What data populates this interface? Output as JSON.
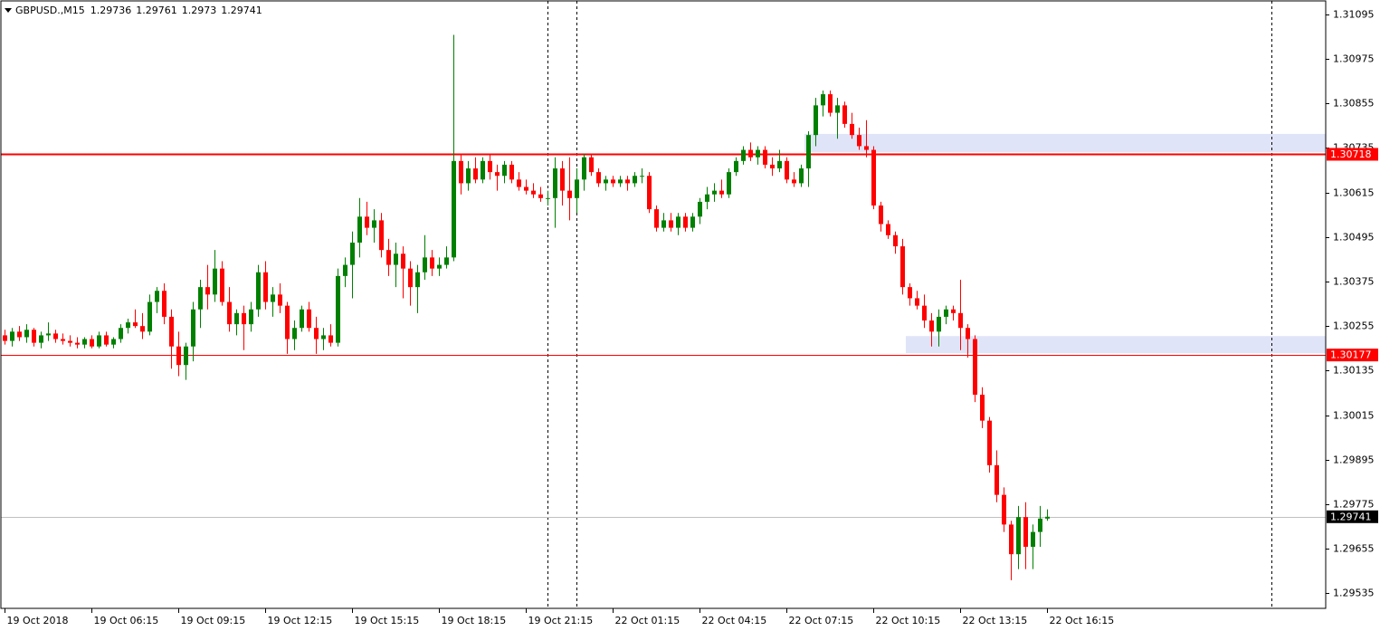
{
  "chart_data": {
    "type": "candlestick",
    "title": "GBPUSD.,M15",
    "up_color": "#008000",
    "down_color": "#ff0000",
    "ylim": [
      1.29494,
      1.31134
    ],
    "yticks": [
      1.31095,
      1.30975,
      1.30855,
      1.30735,
      1.30615,
      1.30495,
      1.30375,
      1.30255,
      1.30135,
      1.30015,
      1.29895,
      1.29775,
      1.29655,
      1.29535
    ],
    "xlim": [
      -0.5,
      182.5
    ],
    "categories": [
      "19 Oct 2018",
      null,
      null,
      null,
      null,
      null,
      null,
      null,
      null,
      null,
      null,
      null,
      "19 Oct 06:15",
      null,
      null,
      null,
      null,
      null,
      null,
      null,
      null,
      null,
      null,
      null,
      "19 Oct 09:15",
      null,
      null,
      null,
      null,
      null,
      null,
      null,
      null,
      null,
      null,
      null,
      "19 Oct 12:15",
      null,
      null,
      null,
      null,
      null,
      null,
      null,
      null,
      null,
      null,
      null,
      "19 Oct 15:15",
      null,
      null,
      null,
      null,
      null,
      null,
      null,
      null,
      null,
      null,
      null,
      "19 Oct 18:15",
      null,
      null,
      null,
      null,
      null,
      null,
      null,
      null,
      null,
      null,
      null,
      "19 Oct 21:15",
      null,
      null,
      null,
      null,
      null,
      null,
      null,
      null,
      null,
      null,
      null,
      "22 Oct 01:15",
      null,
      null,
      null,
      null,
      null,
      null,
      null,
      null,
      null,
      null,
      null,
      "22 Oct 04:15",
      null,
      null,
      null,
      null,
      null,
      null,
      null,
      null,
      null,
      null,
      null,
      "22 Oct 07:15",
      null,
      null,
      null,
      null,
      null,
      null,
      null,
      null,
      null,
      null,
      null,
      "22 Oct 10:15",
      null,
      null,
      null,
      null,
      null,
      null,
      null,
      null,
      null,
      null,
      null,
      "22 Oct 13:15",
      null,
      null,
      null,
      null,
      null,
      null,
      null,
      null,
      null,
      null,
      null,
      "22 Oct 16:15"
    ],
    "candles": [
      [
        1.3023,
        1.30245,
        1.30205,
        1.30215
      ],
      [
        1.30215,
        1.3025,
        1.302,
        1.3024
      ],
      [
        1.3024,
        1.30255,
        1.30215,
        1.30225
      ],
      [
        1.30225,
        1.3026,
        1.3021,
        1.30245
      ],
      [
        1.30245,
        1.3025,
        1.302,
        1.3021
      ],
      [
        1.3021,
        1.3024,
        1.30195,
        1.3023
      ],
      [
        1.3023,
        1.30265,
        1.30215,
        1.30235
      ],
      [
        1.30235,
        1.30245,
        1.3021,
        1.3022
      ],
      [
        1.3022,
        1.30235,
        1.30205,
        1.30215
      ],
      [
        1.30215,
        1.3023,
        1.302,
        1.3021
      ],
      [
        1.3021,
        1.30225,
        1.30195,
        1.30205
      ],
      [
        1.30205,
        1.30225,
        1.30195,
        1.3022
      ],
      [
        1.3022,
        1.3023,
        1.30195,
        1.302
      ],
      [
        1.302,
        1.3024,
        1.30195,
        1.3023
      ],
      [
        1.3023,
        1.3024,
        1.302,
        1.30205
      ],
      [
        1.30205,
        1.30225,
        1.30195,
        1.3022
      ],
      [
        1.3022,
        1.3026,
        1.3021,
        1.3025
      ],
      [
        1.3025,
        1.30275,
        1.30235,
        1.30265
      ],
      [
        1.30265,
        1.303,
        1.3025,
        1.30255
      ],
      [
        1.30255,
        1.3029,
        1.3022,
        1.3024
      ],
      [
        1.3024,
        1.3034,
        1.3023,
        1.3032
      ],
      [
        1.3032,
        1.3036,
        1.3029,
        1.3035
      ],
      [
        1.3035,
        1.3037,
        1.3026,
        1.3028
      ],
      [
        1.3028,
        1.303,
        1.3014,
        1.302
      ],
      [
        1.302,
        1.3024,
        1.3012,
        1.3015
      ],
      [
        1.3015,
        1.3021,
        1.3011,
        1.302
      ],
      [
        1.302,
        1.3032,
        1.3016,
        1.303
      ],
      [
        1.303,
        1.3038,
        1.3025,
        1.3036
      ],
      [
        1.3036,
        1.3042,
        1.303,
        1.3034
      ],
      [
        1.3034,
        1.3046,
        1.3032,
        1.3041
      ],
      [
        1.3041,
        1.3043,
        1.3031,
        1.3032
      ],
      [
        1.3032,
        1.3036,
        1.3024,
        1.3026
      ],
      [
        1.3026,
        1.303,
        1.3023,
        1.3029
      ],
      [
        1.3029,
        1.3031,
        1.3019,
        1.3026
      ],
      [
        1.3026,
        1.3032,
        1.3024,
        1.303
      ],
      [
        1.303,
        1.3042,
        1.3028,
        1.304
      ],
      [
        1.304,
        1.3043,
        1.303,
        1.3032
      ],
      [
        1.3032,
        1.3036,
        1.3028,
        1.3034
      ],
      [
        1.3034,
        1.3037,
        1.3029,
        1.3031
      ],
      [
        1.3031,
        1.3032,
        1.3018,
        1.3022
      ],
      [
        1.3022,
        1.3027,
        1.3019,
        1.3025
      ],
      [
        1.3025,
        1.3031,
        1.3024,
        1.303
      ],
      [
        1.303,
        1.3032,
        1.3024,
        1.3025
      ],
      [
        1.3025,
        1.3028,
        1.3018,
        1.3022
      ],
      [
        1.3022,
        1.3025,
        1.3019,
        1.3023
      ],
      [
        1.3023,
        1.3026,
        1.302,
        1.3021
      ],
      [
        1.3021,
        1.3041,
        1.302,
        1.3039
      ],
      [
        1.3039,
        1.3044,
        1.3036,
        1.3042
      ],
      [
        1.3042,
        1.3051,
        1.3033,
        1.3048
      ],
      [
        1.3048,
        1.306,
        1.3044,
        1.3055
      ],
      [
        1.3055,
        1.3059,
        1.305,
        1.3052
      ],
      [
        1.3052,
        1.3057,
        1.3048,
        1.3054
      ],
      [
        1.3054,
        1.3056,
        1.3044,
        1.3046
      ],
      [
        1.3046,
        1.3049,
        1.3039,
        1.3042
      ],
      [
        1.3042,
        1.3048,
        1.3036,
        1.3045
      ],
      [
        1.3045,
        1.3047,
        1.3033,
        1.3041
      ],
      [
        1.3041,
        1.3043,
        1.3031,
        1.3036
      ],
      [
        1.3036,
        1.3042,
        1.3029,
        1.304
      ],
      [
        1.304,
        1.305,
        1.3038,
        1.3044
      ],
      [
        1.3044,
        1.3046,
        1.3039,
        1.3041
      ],
      [
        1.3041,
        1.3044,
        1.3039,
        1.3042
      ],
      [
        1.3042,
        1.3047,
        1.3041,
        1.3044
      ],
      [
        1.3044,
        1.3104,
        1.3043,
        1.307
      ],
      [
        1.307,
        1.3072,
        1.3061,
        1.3064
      ],
      [
        1.3064,
        1.307,
        1.3062,
        1.3068
      ],
      [
        1.3068,
        1.3071,
        1.3064,
        1.3065
      ],
      [
        1.3065,
        1.3071,
        1.3064,
        1.307
      ],
      [
        1.307,
        1.3072,
        1.3065,
        1.3067
      ],
      [
        1.3067,
        1.3069,
        1.3062,
        1.3066
      ],
      [
        1.3066,
        1.307,
        1.3064,
        1.3069
      ],
      [
        1.3069,
        1.307,
        1.3064,
        1.3065
      ],
      [
        1.3065,
        1.3067,
        1.3062,
        1.3063
      ],
      [
        1.3063,
        1.3065,
        1.3061,
        1.3062
      ],
      [
        1.3062,
        1.3064,
        1.306,
        1.3061
      ],
      [
        1.3061,
        1.3063,
        1.3059,
        1.306
      ],
      [
        1.306,
        1.3062,
        1.3058,
        1.306
      ],
      [
        1.306,
        1.3071,
        1.3052,
        1.3068
      ],
      [
        1.3068,
        1.307,
        1.3058,
        1.3062
      ],
      [
        1.3062,
        1.3071,
        1.3054,
        1.306
      ],
      [
        1.306,
        1.3068,
        1.3056,
        1.3065
      ],
      [
        1.3065,
        1.3072,
        1.3062,
        1.3071
      ],
      [
        1.3071,
        1.3072,
        1.3066,
        1.3067
      ],
      [
        1.3067,
        1.3068,
        1.3063,
        1.3064
      ],
      [
        1.3064,
        1.3066,
        1.3062,
        1.3065
      ],
      [
        1.3065,
        1.3066,
        1.3063,
        1.3064
      ],
      [
        1.3064,
        1.3066,
        1.3063,
        1.3065
      ],
      [
        1.3065,
        1.3066,
        1.3062,
        1.3064
      ],
      [
        1.3064,
        1.3067,
        1.3063,
        1.3066
      ],
      [
        1.3066,
        1.3068,
        1.3064,
        1.3066
      ],
      [
        1.3066,
        1.3067,
        1.3056,
        1.3057
      ],
      [
        1.3057,
        1.3058,
        1.3051,
        1.3052
      ],
      [
        1.3052,
        1.3056,
        1.3051,
        1.3054
      ],
      [
        1.3054,
        1.3056,
        1.3051,
        1.3052
      ],
      [
        1.3052,
        1.3056,
        1.305,
        1.3055
      ],
      [
        1.3055,
        1.3056,
        1.3051,
        1.3052
      ],
      [
        1.3052,
        1.3056,
        1.3051,
        1.3055
      ],
      [
        1.3055,
        1.306,
        1.3053,
        1.3059
      ],
      [
        1.3059,
        1.3063,
        1.3057,
        1.3061
      ],
      [
        1.3061,
        1.3064,
        1.3059,
        1.3062
      ],
      [
        1.3062,
        1.3065,
        1.306,
        1.3061
      ],
      [
        1.3061,
        1.3068,
        1.306,
        1.3067
      ],
      [
        1.3067,
        1.3071,
        1.3066,
        1.307
      ],
      [
        1.307,
        1.3074,
        1.3069,
        1.3073
      ],
      [
        1.3073,
        1.3075,
        1.307,
        1.3071
      ],
      [
        1.3071,
        1.3074,
        1.3069,
        1.3073
      ],
      [
        1.3073,
        1.3074,
        1.3068,
        1.3069
      ],
      [
        1.3069,
        1.3071,
        1.3066,
        1.3068
      ],
      [
        1.3068,
        1.3073,
        1.3067,
        1.307
      ],
      [
        1.307,
        1.3071,
        1.3064,
        1.3065
      ],
      [
        1.3065,
        1.3067,
        1.3063,
        1.3064
      ],
      [
        1.3064,
        1.3069,
        1.3063,
        1.3068
      ],
      [
        1.3068,
        1.3078,
        1.3063,
        1.3077
      ],
      [
        1.3077,
        1.3087,
        1.3074,
        1.3085
      ],
      [
        1.3085,
        1.3089,
        1.3082,
        1.3088
      ],
      [
        1.3088,
        1.3089,
        1.3082,
        1.3083
      ],
      [
        1.3083,
        1.3087,
        1.3076,
        1.3085
      ],
      [
        1.3085,
        1.3086,
        1.3079,
        1.308
      ],
      [
        1.308,
        1.3083,
        1.3076,
        1.3077
      ],
      [
        1.3077,
        1.3079,
        1.3073,
        1.3074
      ],
      [
        1.3074,
        1.3081,
        1.3071,
        1.3073
      ],
      [
        1.3073,
        1.3074,
        1.3057,
        1.3058
      ],
      [
        1.3058,
        1.3059,
        1.3051,
        1.3053
      ],
      [
        1.3053,
        1.3054,
        1.3049,
        1.305
      ],
      [
        1.305,
        1.3051,
        1.3045,
        1.3047
      ],
      [
        1.3047,
        1.3049,
        1.3034,
        1.3036
      ],
      [
        1.3036,
        1.3037,
        1.3031,
        1.3033
      ],
      [
        1.3033,
        1.3035,
        1.303,
        1.3031
      ],
      [
        1.3031,
        1.3034,
        1.3025,
        1.3027
      ],
      [
        1.3027,
        1.3029,
        1.302,
        1.3024
      ],
      [
        1.3024,
        1.303,
        1.302,
        1.3028
      ],
      [
        1.3028,
        1.3031,
        1.3026,
        1.303
      ],
      [
        1.303,
        1.3031,
        1.3027,
        1.3029
      ],
      [
        1.3029,
        1.3038,
        1.3019,
        1.3025
      ],
      [
        1.3025,
        1.3026,
        1.3017,
        1.3022
      ],
      [
        1.3022,
        1.3023,
        1.3005,
        1.3007
      ],
      [
        1.3007,
        1.3009,
        1.2998,
        1.3
      ],
      [
        1.3,
        1.3001,
        1.2986,
        1.2988
      ],
      [
        1.2988,
        1.2992,
        1.2978,
        1.298
      ],
      [
        1.298,
        1.2982,
        1.297,
        1.2972
      ],
      [
        1.2972,
        1.2973,
        1.2957,
        1.2964
      ],
      [
        1.2964,
        1.2977,
        1.296,
        1.2974
      ],
      [
        1.2974,
        1.2978,
        1.296,
        1.2966
      ],
      [
        1.2966,
        1.2972,
        1.296,
        1.297
      ],
      [
        1.297,
        1.2977,
        1.2966,
        1.29736
      ],
      [
        1.29736,
        1.29761,
        1.2973,
        1.29741
      ]
    ],
    "hlines": [
      1.30718,
      1.30177
    ],
    "hline_color": "#ff0000",
    "zones": [
      {
        "start": 111,
        "high": 1.30773,
        "low": 1.30724
      },
      {
        "start": 125,
        "high": 1.30228,
        "low": 1.30182
      }
    ],
    "zone_color": "#e0e4f8",
    "vlines": [
      75,
      79,
      175
    ]
  }
}
